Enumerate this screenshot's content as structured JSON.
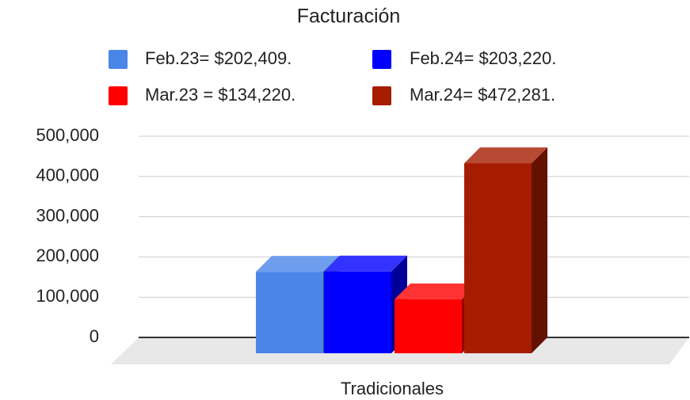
{
  "chart_data": {
    "type": "bar3d",
    "title": "Facturación",
    "categories": [
      "Tradicionales"
    ],
    "series": [
      {
        "name": "Feb.23= $202,409.",
        "color": "#4a86e8",
        "values": [
          202409
        ]
      },
      {
        "name": "Feb.24= $203,220.",
        "color": "#0000ff",
        "values": [
          203220
        ]
      },
      {
        "name": "Mar.23 = $134,220.",
        "color": "#ff0000",
        "values": [
          134220
        ]
      },
      {
        "name": "Mar.24= $472,281.",
        "color": "#a61c00",
        "values": [
          472281
        ]
      }
    ],
    "ylim": [
      0,
      500000
    ],
    "yticks": [
      0,
      {
        "value": 100000,
        "label": "100,000"
      },
      {
        "value": 200000,
        "label": "200,000"
      },
      {
        "value": 300000,
        "label": "300,000"
      },
      {
        "value": 400000,
        "label": "400,000"
      },
      {
        "value": 500000,
        "label": "500,000"
      }
    ],
    "grid": true,
    "legend": "top"
  }
}
